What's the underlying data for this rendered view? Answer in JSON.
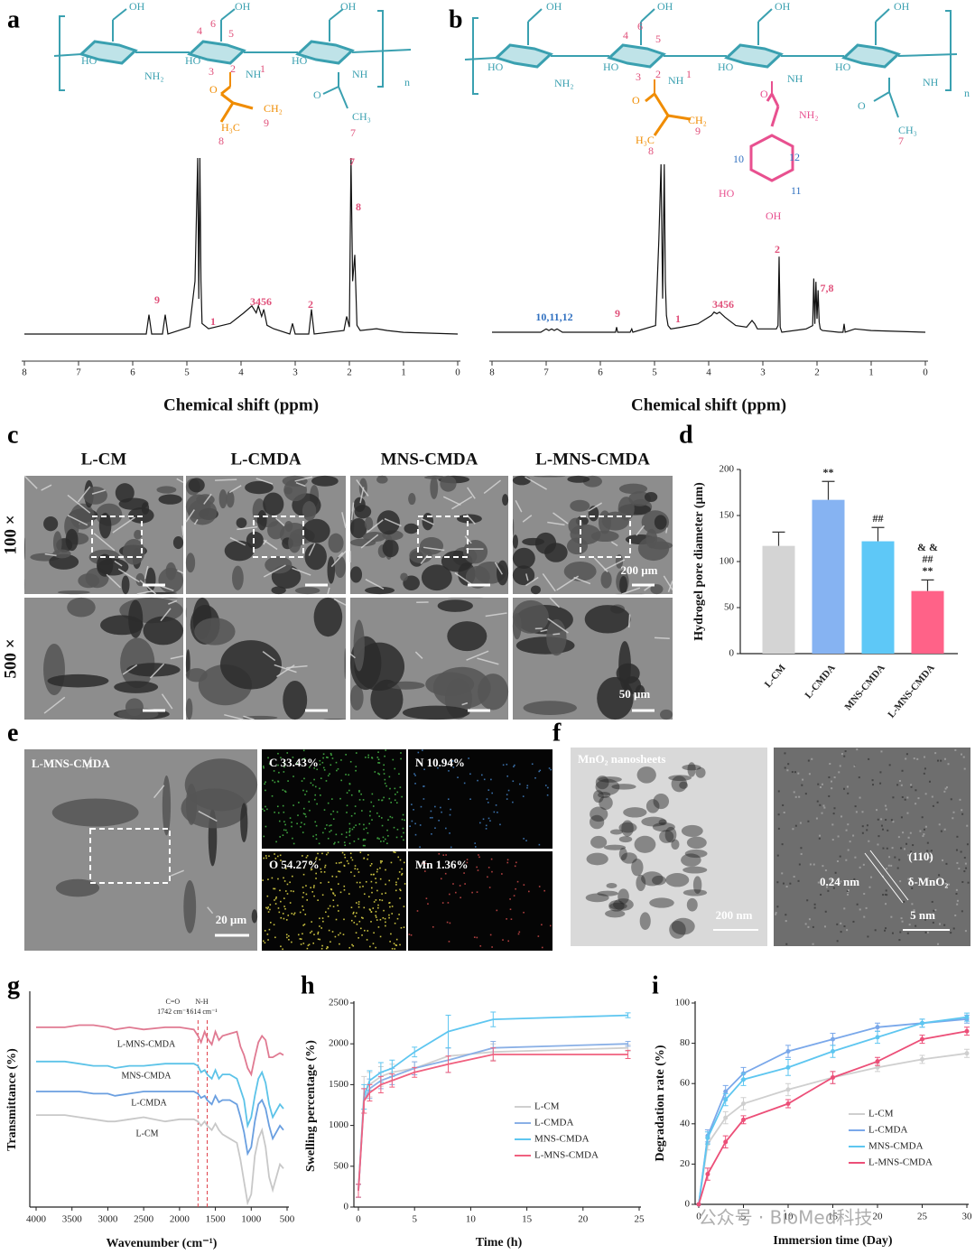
{
  "figure": {
    "panel_labels": [
      "a",
      "b",
      "c",
      "d",
      "e",
      "f",
      "g",
      "h",
      "i"
    ],
    "structure_a": [
      "OH",
      "OH",
      "OH",
      "4",
      "6",
      "5",
      "HO",
      "NH₂",
      "HO",
      "3",
      "2",
      "NH",
      "1",
      "HO",
      "NH",
      "n",
      "O",
      "CH₂",
      "H₃C",
      "9",
      "8",
      "O",
      "CH₃",
      "7"
    ],
    "structure_b": [
      "OH",
      "OH",
      "OH",
      "OH",
      "4",
      "6",
      "5",
      "HO",
      "NH₂",
      "HO",
      "3",
      "2",
      "NH",
      "1",
      "HO",
      "NH",
      "HO",
      "NH",
      "n",
      "O",
      "NH₂",
      "O",
      "CH₂",
      "9",
      "H₃C",
      "8",
      "10",
      "12",
      "11",
      "HO",
      "OH",
      "O",
      "CH₃",
      "7"
    ],
    "sem": {
      "columns": [
        "L-CM",
        "L-CMDA",
        "MNS-CMDA",
        "L-MNS-CMDA"
      ],
      "rows": [
        "100 ×",
        "500 ×"
      ],
      "scale_bars": [
        "200 μm",
        "50 μm"
      ]
    },
    "eds": {
      "image_label": "L-MNS-CMDA",
      "scale_bar": "20 μm",
      "maps": [
        "C 33.43%",
        "N 10.94%",
        "O 54.27%",
        "Mn 1.36%"
      ]
    },
    "tem": {
      "image_label": "MnO₂ nanosheets",
      "scale_bar": "200 nm",
      "plane": "(110)",
      "spacing": "0.24 nm",
      "phase": "δ-MnO₂",
      "hr_scale_bar": "5 nm"
    },
    "watermark": "公众号 · BioMed科技"
  },
  "chart_data": [
    {
      "type": "line",
      "xlabel": "Chemical shift (ppm)",
      "color": "#111111",
      "xlim": [
        8,
        0
      ],
      "ylim": [
        0,
        100
      ],
      "xticks": [
        8,
        7,
        6,
        5,
        4,
        3,
        2,
        1,
        0
      ],
      "x": [
        8.0,
        6.0,
        5.75,
        5.7,
        5.65,
        5.45,
        5.4,
        5.35,
        4.95,
        4.85,
        4.8,
        4.78,
        4.76,
        4.74,
        4.72,
        4.6,
        4.2,
        3.95,
        3.8,
        3.72,
        3.68,
        3.62,
        3.58,
        3.52,
        3.4,
        3.1,
        3.05,
        3.0,
        2.75,
        2.7,
        2.65,
        2.1,
        2.05,
        2.0,
        1.97,
        1.94,
        1.9,
        1.86,
        1.8,
        1.5,
        1.3,
        1.0,
        0.0
      ],
      "values": [
        0,
        0,
        0,
        11,
        0,
        0,
        11,
        0,
        4,
        30,
        100,
        20,
        100,
        30,
        6,
        3,
        6,
        12,
        16,
        12,
        16,
        10,
        14,
        5,
        3,
        0,
        6,
        0,
        0,
        14,
        0,
        2,
        10,
        4,
        100,
        30,
        45,
        5,
        2,
        3,
        2,
        1,
        0
      ],
      "annotations": [
        "9",
        "1",
        "3456",
        "2",
        "7",
        "8"
      ]
    },
    {
      "type": "line",
      "xlabel": "Chemical shift (ppm)",
      "color": "#111111",
      "xlim": [
        8,
        0
      ],
      "ylim": [
        0,
        100
      ],
      "xticks": [
        8,
        7,
        6,
        5,
        4,
        3,
        2,
        1,
        0
      ],
      "x": [
        8,
        7.1,
        7.0,
        6.95,
        6.9,
        6.85,
        6.8,
        6.7,
        6.0,
        5.72,
        5.7,
        5.68,
        5.45,
        5.42,
        5.4,
        4.98,
        4.92,
        4.88,
        4.85,
        4.82,
        4.8,
        4.78,
        4.75,
        4.7,
        4.5,
        4.2,
        3.95,
        3.9,
        3.85,
        3.8,
        3.7,
        3.5,
        3.3,
        3.2,
        3.15,
        3.1,
        2.75,
        2.72,
        2.7,
        2.68,
        2.65,
        2.2,
        2.08,
        2.06,
        2.04,
        2.02,
        2.0,
        1.98,
        1.96,
        1.94,
        1.9,
        1.6,
        1.52,
        1.5,
        1.48,
        1.3,
        1.0,
        0
      ],
      "values": [
        0,
        0,
        2,
        1,
        2,
        1,
        2,
        0,
        0,
        0,
        3,
        0,
        0,
        2,
        0,
        4,
        55,
        100,
        20,
        100,
        30,
        10,
        4,
        2,
        3,
        5,
        10,
        12,
        11,
        12,
        9,
        4,
        3,
        7,
        5,
        2,
        2,
        4,
        45,
        3,
        0,
        2,
        4,
        32,
        5,
        30,
        8,
        25,
        6,
        2,
        1,
        0,
        0,
        5,
        0,
        2,
        1,
        0
      ],
      "annotations": [
        "10,11,12",
        "9",
        "1",
        "3456",
        "2",
        "7,8"
      ]
    },
    {
      "type": "bar",
      "ylabel": "Hydrogel pore diameter (μm)",
      "categories": [
        "L-CM",
        "L-CMDA",
        "MNS-CMDA",
        "L-MNS-CMDA"
      ],
      "values": [
        117,
        167,
        122,
        68
      ],
      "errors": [
        15,
        20,
        15,
        12
      ],
      "colors": [
        "#d4d4d4",
        "#86b3f2",
        "#5ec8f7",
        "#ff6288"
      ],
      "markers": [
        [],
        [
          "**"
        ],
        [
          "##"
        ],
        [
          "& &",
          "##",
          "**"
        ]
      ],
      "ylim": [
        0,
        200
      ],
      "yticks": [
        0,
        50,
        100,
        150,
        200
      ]
    },
    {
      "type": "line",
      "xlabel": "Wavenumber (cm⁻¹)",
      "ylabel": "Transmittance (%)",
      "xlim": [
        4000,
        500
      ],
      "ylim": [
        0,
        100
      ],
      "xticks": [
        4000,
        3500,
        3000,
        2500,
        2000,
        1500,
        1000,
        500
      ],
      "x": [
        4000,
        3600,
        3400,
        3200,
        3000,
        2900,
        2700,
        2500,
        2200,
        2000,
        1800,
        1742,
        1700,
        1650,
        1614,
        1550,
        1500,
        1450,
        1400,
        1300,
        1200,
        1150,
        1100,
        1050,
        1000,
        950,
        900,
        850,
        800,
        750,
        700,
        600,
        550
      ],
      "ref_lines": [
        {
          "value": 1742,
          "label": "1742 cm⁻¹",
          "bond": "C=O"
        },
        {
          "value": 1614,
          "label": "1614 cm⁻¹",
          "bond": "N-H"
        }
      ],
      "series": [
        {
          "name": "L-MNS-CMDA",
          "color": "#e07a92",
          "values": [
            84,
            84,
            85,
            85,
            84,
            83,
            84,
            83,
            84,
            84,
            83,
            80,
            77,
            82,
            79,
            76,
            82,
            78,
            80,
            81,
            82,
            75,
            71,
            65,
            62,
            70,
            77,
            80,
            78,
            70,
            70,
            72,
            71
          ]
        },
        {
          "name": "MNS-CMDA",
          "color": "#5cc3e8",
          "values": [
            68,
            68,
            67,
            66,
            66,
            65,
            66,
            66,
            67,
            67,
            67,
            66,
            63,
            64,
            62,
            60,
            64,
            60,
            62,
            62,
            60,
            55,
            50,
            38,
            42,
            52,
            60,
            63,
            58,
            48,
            42,
            48,
            46
          ]
        },
        {
          "name": "L-CMDA",
          "color": "#6a9fe0",
          "values": [
            54,
            54,
            54,
            53,
            53,
            52,
            53,
            54,
            54,
            54,
            54,
            53,
            51,
            52,
            50,
            48,
            52,
            49,
            50,
            50,
            48,
            42,
            35,
            25,
            28,
            40,
            48,
            50,
            46,
            38,
            32,
            38,
            36
          ]
        },
        {
          "name": "L-CM",
          "color": "#c8c8c8",
          "values": [
            43,
            43,
            42,
            41,
            40,
            40,
            41,
            42,
            40,
            41,
            41,
            40,
            38,
            40,
            38,
            36,
            39,
            36,
            34,
            32,
            30,
            22,
            12,
            2,
            6,
            24,
            32,
            36,
            28,
            14,
            8,
            20,
            18
          ]
        }
      ]
    },
    {
      "type": "line",
      "xlabel": "Time (h)",
      "ylabel": "Swelling percentage (%)",
      "xlim": [
        0,
        25
      ],
      "ylim": [
        0,
        2500
      ],
      "xticks": [
        0,
        5,
        10,
        15,
        20,
        25
      ],
      "yticks": [
        0,
        500,
        1000,
        1500,
        2000,
        2500
      ],
      "legend": "lower-right",
      "x": [
        0,
        0.5,
        1,
        2,
        3,
        5,
        8,
        12,
        24
      ],
      "series": [
        {
          "name": "L-CM",
          "color": "#cfcfcf",
          "values": [
            200,
            1400,
            1500,
            1600,
            1650,
            1700,
            1850,
            1900,
            1950
          ],
          "errors": [
            80,
            200,
            150,
            120,
            100,
            80,
            100,
            100,
            40
          ]
        },
        {
          "name": "L-CMDA",
          "color": "#8ab0e6",
          "values": [
            200,
            1300,
            1450,
            1550,
            1600,
            1700,
            1800,
            1950,
            2000
          ],
          "errors": [
            80,
            150,
            120,
            100,
            100,
            80,
            150,
            80,
            30
          ]
        },
        {
          "name": "MNS-CMDA",
          "color": "#5ec6f0",
          "values": [
            200,
            1350,
            1550,
            1650,
            1700,
            1900,
            2150,
            2300,
            2350
          ],
          "errors": [
            80,
            150,
            120,
            120,
            100,
            60,
            200,
            90,
            30
          ]
        },
        {
          "name": "L-MNS-CMDA",
          "color": "#f0607f",
          "values": [
            200,
            1300,
            1400,
            1500,
            1550,
            1650,
            1750,
            1870,
            1870
          ],
          "errors": [
            80,
            150,
            100,
            100,
            80,
            60,
            100,
            80,
            50
          ]
        }
      ]
    },
    {
      "type": "line",
      "xlabel": "Immersion time (Day)",
      "ylabel": "Degradation rate (%)",
      "xlim": [
        0,
        30
      ],
      "ylim": [
        0,
        100
      ],
      "xticks": [
        0,
        5,
        10,
        15,
        20,
        25,
        30
      ],
      "yticks": [
        0,
        20,
        40,
        60,
        80,
        100
      ],
      "legend": "lower-right",
      "x": [
        0,
        1,
        3,
        5,
        10,
        15,
        20,
        25,
        30
      ],
      "series": [
        {
          "name": "L-CM",
          "color": "#cfcfcf",
          "values": [
            0,
            30,
            43,
            50,
            57,
            63,
            68,
            72,
            75
          ],
          "errors": [
            0,
            3,
            3,
            3,
            3,
            3,
            2,
            2,
            2
          ]
        },
        {
          "name": "L-CMDA",
          "color": "#7aa8ea",
          "values": [
            0,
            34,
            56,
            65,
            76,
            82,
            88,
            90,
            92
          ],
          "errors": [
            0,
            3,
            3,
            3,
            3,
            3,
            2,
            2,
            2
          ]
        },
        {
          "name": "MNS-CMDA",
          "color": "#5ec6f0",
          "values": [
            0,
            33,
            52,
            62,
            68,
            76,
            83,
            90,
            93
          ],
          "errors": [
            0,
            3,
            3,
            3,
            4,
            3,
            3,
            2,
            2
          ]
        },
        {
          "name": "L-MNS-CMDA",
          "color": "#ec4f78",
          "values": [
            0,
            15,
            31,
            42,
            50,
            63,
            71,
            82,
            86
          ],
          "errors": [
            0,
            3,
            3,
            2,
            2,
            3,
            2,
            2,
            2
          ]
        }
      ]
    }
  ]
}
